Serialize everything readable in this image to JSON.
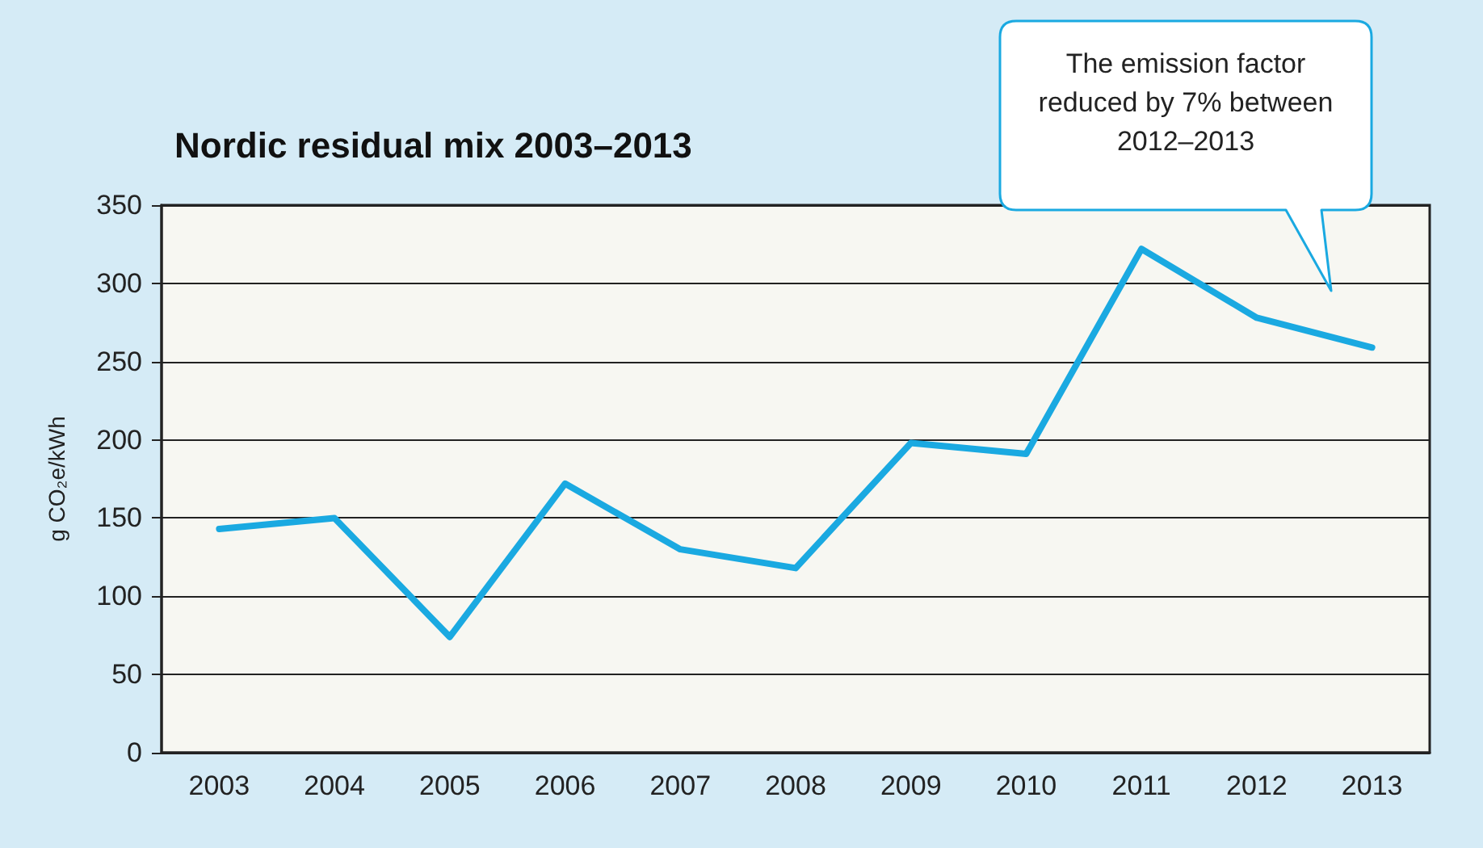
{
  "chart_data": {
    "type": "line",
    "title": "Nordic residual mix 2003–2013",
    "ylabel": "g CO₂e/kWh",
    "categories": [
      "2003",
      "2004",
      "2005",
      "2006",
      "2007",
      "2008",
      "2009",
      "2010",
      "2011",
      "2012",
      "2013"
    ],
    "series": [
      {
        "color": "#1aa9e1",
        "values": [
          143,
          150,
          74,
          172,
          130,
          118,
          198,
          191,
          322,
          278,
          259
        ]
      }
    ],
    "ylim": [
      0,
      350
    ],
    "yticks": [
      0,
      50,
      100,
      150,
      200,
      250,
      300,
      350
    ],
    "grid": "y",
    "marker": "none",
    "line_style": "solid",
    "annotations": [
      "The emission factor reduced by 7% between 2012–2013"
    ]
  }
}
